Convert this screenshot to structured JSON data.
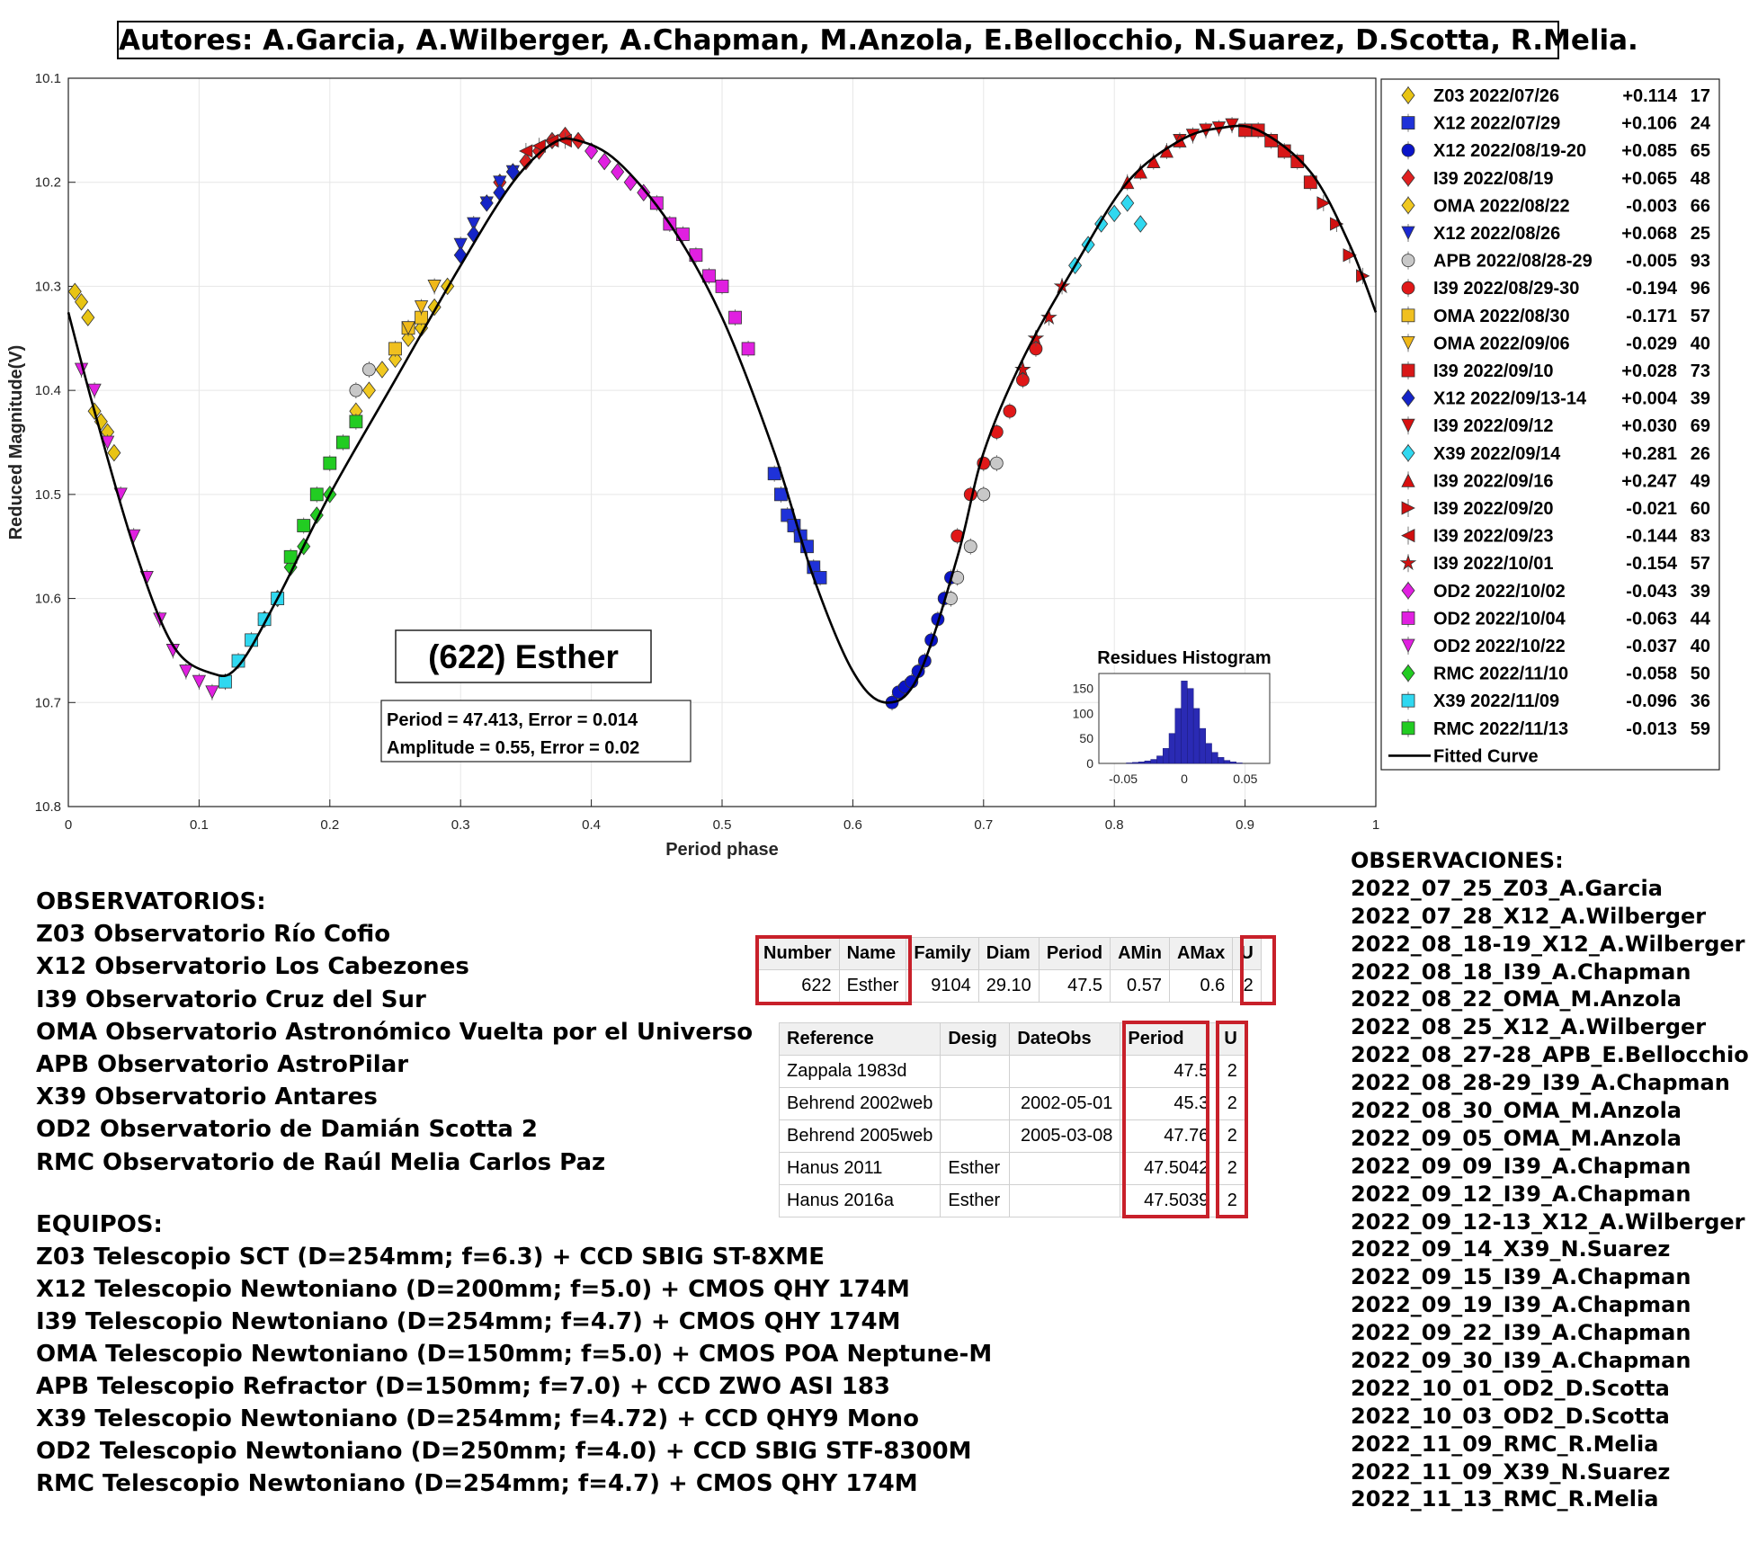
{
  "authors": "Autores: A.Garcia, A.Wilberger, A.Chapman, M.Anzola, E.Bellocchio, N.Suarez, D.Scotta, R.Melia.",
  "chart_data": {
    "type": "scatter",
    "title": "(622) Esther",
    "xlabel": "Period phase",
    "ylabel": "Reduced Magnitude(V)",
    "xlim": [
      0,
      1
    ],
    "ylim": [
      10.1,
      10.8
    ],
    "y_reversed": true,
    "x_ticks": [
      "0",
      "0.1",
      "0.2",
      "0.3",
      "0.4",
      "0.5",
      "0.6",
      "0.7",
      "0.8",
      "0.9",
      "1"
    ],
    "y_ticks": [
      "10.1",
      "10.2",
      "10.3",
      "10.4",
      "10.5",
      "10.6",
      "10.7",
      "10.8"
    ],
    "grid": true,
    "legend_position": "outside-right",
    "fit_info": {
      "line1": "Period =  47.413, Error = 0.014",
      "line2": "Amplitude = 0.55, Error = 0.02"
    },
    "fitted_curve": {
      "name": "Fitted Curve",
      "points": [
        [
          0,
          10.325
        ],
        [
          0.02,
          10.42
        ],
        [
          0.05,
          10.55
        ],
        [
          0.08,
          10.645
        ],
        [
          0.11,
          10.672
        ],
        [
          0.13,
          10.665
        ],
        [
          0.16,
          10.6
        ],
        [
          0.2,
          10.5
        ],
        [
          0.25,
          10.39
        ],
        [
          0.3,
          10.28
        ],
        [
          0.34,
          10.2
        ],
        [
          0.37,
          10.163
        ],
        [
          0.39,
          10.16
        ],
        [
          0.42,
          10.18
        ],
        [
          0.46,
          10.24
        ],
        [
          0.5,
          10.33
        ],
        [
          0.54,
          10.46
        ],
        [
          0.57,
          10.58
        ],
        [
          0.6,
          10.67
        ],
        [
          0.625,
          10.7
        ],
        [
          0.65,
          10.675
        ],
        [
          0.68,
          10.56
        ],
        [
          0.7,
          10.46
        ],
        [
          0.73,
          10.37
        ],
        [
          0.77,
          10.28
        ],
        [
          0.81,
          10.2
        ],
        [
          0.85,
          10.16
        ],
        [
          0.88,
          10.148
        ],
        [
          0.91,
          10.15
        ],
        [
          0.95,
          10.19
        ],
        [
          0.98,
          10.26
        ],
        [
          1.0,
          10.325
        ]
      ]
    },
    "series": [
      {
        "name": "Z03 2022/07/26",
        "offset": "+0.114",
        "n": "17",
        "color": "#e8c414",
        "marker": "diamond",
        "points": [
          [
            0.005,
            10.305
          ],
          [
            0.01,
            10.315
          ],
          [
            0.015,
            10.33
          ],
          [
            0.02,
            10.42
          ],
          [
            0.025,
            10.43
          ],
          [
            0.03,
            10.44
          ],
          [
            0.035,
            10.46
          ],
          [
            0.27,
            10.34
          ],
          [
            0.29,
            10.3
          ],
          [
            0.28,
            10.32
          ]
        ]
      },
      {
        "name": "X12 2022/07/29",
        "offset": "+0.106",
        "n": "24",
        "color": "#1f32d8",
        "marker": "square",
        "points": [
          [
            0.54,
            10.48
          ],
          [
            0.545,
            10.5
          ],
          [
            0.55,
            10.52
          ],
          [
            0.555,
            10.53
          ],
          [
            0.56,
            10.54
          ],
          [
            0.565,
            10.55
          ],
          [
            0.57,
            10.57
          ],
          [
            0.575,
            10.58
          ]
        ]
      },
      {
        "name": "X12 2022/08/19-20",
        "offset": "+0.085",
        "n": "65",
        "color": "#0a14c8",
        "marker": "circle",
        "points": [
          [
            0.63,
            10.7
          ],
          [
            0.635,
            10.69
          ],
          [
            0.64,
            10.685
          ],
          [
            0.645,
            10.68
          ],
          [
            0.65,
            10.67
          ],
          [
            0.655,
            10.66
          ],
          [
            0.66,
            10.64
          ],
          [
            0.665,
            10.62
          ],
          [
            0.67,
            10.6
          ],
          [
            0.675,
            10.58
          ]
        ]
      },
      {
        "name": "I39 2022/08/19",
        "offset": "+0.065",
        "n": "48",
        "color": "#e02020",
        "marker": "diamond",
        "points": [
          [
            0.34,
            10.19
          ],
          [
            0.35,
            10.18
          ],
          [
            0.36,
            10.17
          ],
          [
            0.37,
            10.16
          ],
          [
            0.38,
            10.155
          ],
          [
            0.39,
            10.16
          ],
          [
            0.33,
            10.2
          ]
        ]
      },
      {
        "name": "OMA 2022/08/22",
        "offset": "-0.003",
        "n": "66",
        "color": "#f0c820",
        "marker": "diamond",
        "points": [
          [
            0.22,
            10.42
          ],
          [
            0.23,
            10.4
          ],
          [
            0.24,
            10.38
          ],
          [
            0.25,
            10.37
          ],
          [
            0.26,
            10.35
          ]
        ]
      },
      {
        "name": "X12 2022/08/26",
        "offset": "+0.068",
        "n": "25",
        "color": "#1a28d0",
        "marker": "triangle-down",
        "points": [
          [
            0.3,
            10.26
          ],
          [
            0.31,
            10.24
          ],
          [
            0.32,
            10.22
          ],
          [
            0.33,
            10.2
          ],
          [
            0.34,
            10.19
          ]
        ]
      },
      {
        "name": "APB 2022/08/28-29",
        "offset": "-0.005",
        "n": "93",
        "color": "#c8c8c8",
        "marker": "circle",
        "points": [
          [
            0.22,
            10.4
          ],
          [
            0.23,
            10.38
          ],
          [
            0.68,
            10.58
          ],
          [
            0.69,
            10.55
          ],
          [
            0.7,
            10.5
          ],
          [
            0.71,
            10.47
          ],
          [
            0.675,
            10.6
          ]
        ]
      },
      {
        "name": "I39 2022/08/29-30",
        "offset": "-0.194",
        "n": "96",
        "color": "#e01818",
        "marker": "circle",
        "points": [
          [
            0.68,
            10.54
          ],
          [
            0.69,
            10.5
          ],
          [
            0.7,
            10.47
          ],
          [
            0.71,
            10.44
          ],
          [
            0.72,
            10.42
          ],
          [
            0.73,
            10.39
          ],
          [
            0.74,
            10.36
          ]
        ]
      },
      {
        "name": "OMA 2022/08/30",
        "offset": "-0.171",
        "n": "57",
        "color": "#f0c020",
        "marker": "square",
        "points": [
          [
            0.25,
            10.36
          ],
          [
            0.26,
            10.34
          ],
          [
            0.27,
            10.33
          ]
        ]
      },
      {
        "name": "OMA 2022/09/06",
        "offset": "-0.029",
        "n": "40",
        "color": "#f0b818",
        "marker": "triangle-down",
        "points": [
          [
            0.26,
            10.34
          ],
          [
            0.27,
            10.32
          ],
          [
            0.28,
            10.3
          ]
        ]
      },
      {
        "name": "I39 2022/09/10",
        "offset": "+0.028",
        "n": "73",
        "color": "#d81818",
        "marker": "square",
        "points": [
          [
            0.9,
            10.15
          ],
          [
            0.91,
            10.15
          ],
          [
            0.92,
            10.16
          ],
          [
            0.93,
            10.17
          ],
          [
            0.94,
            10.18
          ],
          [
            0.95,
            10.2
          ]
        ]
      },
      {
        "name": "X12 2022/09/13-14",
        "offset": "+0.004",
        "n": "39",
        "color": "#1424c8",
        "marker": "diamond",
        "points": [
          [
            0.3,
            10.27
          ],
          [
            0.31,
            10.25
          ],
          [
            0.32,
            10.22
          ],
          [
            0.33,
            10.21
          ],
          [
            0.34,
            10.19
          ]
        ]
      },
      {
        "name": "I39 2022/09/12",
        "offset": "+0.030",
        "n": "69",
        "color": "#d81010",
        "marker": "triangle-down",
        "points": [
          [
            0.85,
            10.16
          ],
          [
            0.86,
            10.155
          ],
          [
            0.87,
            10.15
          ],
          [
            0.88,
            10.148
          ],
          [
            0.89,
            10.145
          ]
        ]
      },
      {
        "name": "X39 2022/09/14",
        "offset": "+0.281",
        "n": "26",
        "color": "#30d8f0",
        "marker": "diamond",
        "points": [
          [
            0.77,
            10.28
          ],
          [
            0.78,
            10.26
          ],
          [
            0.79,
            10.24
          ],
          [
            0.8,
            10.23
          ],
          [
            0.81,
            10.22
          ],
          [
            0.82,
            10.24
          ]
        ]
      },
      {
        "name": "I39 2022/09/16",
        "offset": "+0.247",
        "n": "49",
        "color": "#d81010",
        "marker": "triangle-up",
        "points": [
          [
            0.81,
            10.2
          ],
          [
            0.82,
            10.19
          ],
          [
            0.83,
            10.18
          ],
          [
            0.84,
            10.17
          ],
          [
            0.85,
            10.16
          ]
        ]
      },
      {
        "name": "I39 2022/09/20",
        "offset": "-0.021",
        "n": "60",
        "color": "#d01010",
        "marker": "triangle-right",
        "points": [
          [
            0.96,
            10.22
          ],
          [
            0.97,
            10.24
          ],
          [
            0.98,
            10.27
          ],
          [
            0.99,
            10.29
          ]
        ]
      },
      {
        "name": "I39 2022/09/23",
        "offset": "-0.144",
        "n": "83",
        "color": "#d01010",
        "marker": "triangle-left",
        "points": [
          [
            0.35,
            10.17
          ],
          [
            0.36,
            10.165
          ],
          [
            0.37,
            10.16
          ],
          [
            0.38,
            10.16
          ]
        ]
      },
      {
        "name": "I39 2022/10/01",
        "offset": "-0.154",
        "n": "57",
        "color": "#d01010",
        "marker": "star",
        "points": [
          [
            0.73,
            10.38
          ],
          [
            0.74,
            10.35
          ],
          [
            0.75,
            10.33
          ],
          [
            0.76,
            10.3
          ]
        ]
      },
      {
        "name": "OD2 2022/10/02",
        "offset": "-0.043",
        "n": "39",
        "color": "#e020e0",
        "marker": "diamond",
        "points": [
          [
            0.4,
            10.17
          ],
          [
            0.41,
            10.18
          ],
          [
            0.42,
            10.19
          ],
          [
            0.43,
            10.2
          ],
          [
            0.44,
            10.21
          ]
        ]
      },
      {
        "name": "OD2 2022/10/04",
        "offset": "-0.063",
        "n": "44",
        "color": "#e020e0",
        "marker": "square",
        "points": [
          [
            0.45,
            10.22
          ],
          [
            0.46,
            10.24
          ],
          [
            0.47,
            10.25
          ],
          [
            0.48,
            10.27
          ],
          [
            0.49,
            10.29
          ],
          [
            0.5,
            10.3
          ],
          [
            0.51,
            10.33
          ],
          [
            0.52,
            10.36
          ]
        ]
      },
      {
        "name": "OD2 2022/10/22",
        "offset": "-0.037",
        "n": "40",
        "color": "#e020e0",
        "marker": "triangle-down",
        "points": [
          [
            0.01,
            10.38
          ],
          [
            0.02,
            10.4
          ],
          [
            0.03,
            10.45
          ],
          [
            0.04,
            10.5
          ],
          [
            0.05,
            10.54
          ],
          [
            0.06,
            10.58
          ],
          [
            0.07,
            10.62
          ],
          [
            0.08,
            10.65
          ],
          [
            0.09,
            10.67
          ],
          [
            0.1,
            10.68
          ],
          [
            0.11,
            10.69
          ],
          [
            0.12,
            10.68
          ]
        ]
      },
      {
        "name": "RMC 2022/11/10",
        "offset": "-0.058",
        "n": "50",
        "color": "#22cc22",
        "marker": "diamond",
        "points": [
          [
            0.15,
            10.62
          ],
          [
            0.16,
            10.6
          ],
          [
            0.17,
            10.57
          ],
          [
            0.18,
            10.55
          ],
          [
            0.19,
            10.52
          ],
          [
            0.2,
            10.5
          ]
        ]
      },
      {
        "name": "X39 2022/11/09",
        "offset": "-0.096",
        "n": "36",
        "color": "#30d8f0",
        "marker": "square",
        "points": [
          [
            0.12,
            10.68
          ],
          [
            0.13,
            10.66
          ],
          [
            0.14,
            10.64
          ],
          [
            0.15,
            10.62
          ],
          [
            0.16,
            10.6
          ]
        ]
      },
      {
        "name": "RMC 2022/11/13",
        "offset": "-0.013",
        "n": "59",
        "color": "#22cc22",
        "marker": "square",
        "points": [
          [
            0.17,
            10.56
          ],
          [
            0.18,
            10.53
          ],
          [
            0.19,
            10.5
          ],
          [
            0.2,
            10.47
          ],
          [
            0.21,
            10.45
          ],
          [
            0.22,
            10.43
          ]
        ]
      }
    ],
    "inset_histogram": {
      "title": "Residues Histogram",
      "x_ticks": [
        "-0.05",
        "0",
        "0.05"
      ],
      "y_ticks": [
        "0",
        "50",
        "100",
        "150"
      ],
      "ylim": [
        0,
        180
      ],
      "bin_centers": [
        -0.05,
        -0.045,
        -0.04,
        -0.035,
        -0.03,
        -0.025,
        -0.02,
        -0.015,
        -0.01,
        -0.005,
        0,
        0.005,
        0.01,
        0.015,
        0.02,
        0.025,
        0.03,
        0.035,
        0.04,
        0.045,
        0.05
      ],
      "counts": [
        0,
        1,
        2,
        3,
        5,
        8,
        15,
        30,
        60,
        110,
        165,
        150,
        110,
        70,
        40,
        22,
        12,
        6,
        3,
        1,
        0
      ],
      "bar_color": "#2a2ab4"
    }
  },
  "observatorios": {
    "title": "OBSERVATORIOS:",
    "items": [
      "Z03 Observatorio Río Cofio",
      "X12 Observatorio Los Cabezones",
      "I39 Observatorio Cruz del Sur",
      "OMA Observatorio Astronómico Vuelta por el Universo",
      "APB Observatorio AstroPilar",
      "X39 Observatorio Antares",
      "OD2 Observatorio de Damián Scotta 2",
      "RMC Observatorio de Raúl Melia Carlos Paz"
    ]
  },
  "equipos": {
    "title": "EQUIPOS:",
    "items": [
      "Z03 Telescopio SCT (D=254mm; f=6.3) + CCD SBIG ST-8XME",
      "X12 Telescopio Newtoniano (D=200mm; f=5.0) + CMOS QHY 174M",
      "I39 Telescopio Newtoniano (D=254mm; f=4.7) + CMOS QHY 174M",
      "OMA Telescopio Newtoniano (D=150mm; f=5.0) + CMOS POA Neptune-M",
      "APB Telescopio Refractor (D=150mm; f=7.0) + CCD ZWO ASI 183",
      "X39 Telescopio Newtoniano (D=254mm; f=4.72) + CCD QHY9 Mono",
      "OD2 Telescopio Newtoniano (D=250mm; f=4.0) + CCD SBIG STF-8300M",
      "RMC Telescopio Newtoniano (D=254mm; f=4.7) + CMOS QHY 174M"
    ]
  },
  "observaciones": {
    "title": "OBSERVACIONES:",
    "items": [
      "2022_07_25_Z03_A.Garcia",
      "2022_07_28_X12_A.Wilberger",
      "2022_08_18-19_X12_A.Wilberger",
      "2022_08_18_I39_A.Chapman",
      "2022_08_22_OMA_M.Anzola",
      "2022_08_25_X12_A.Wilberger",
      "2022_08_27-28_APB_E.Bellocchio",
      "2022_08_28-29_I39_A.Chapman",
      "2022_08_30_OMA_M.Anzola",
      "2022_09_05_OMA_M.Anzola",
      "2022_09_09_I39_A.Chapman",
      "2022_09_12_I39_A.Chapman",
      "2022_09_12-13_X12_A.Wilberger",
      "2022_09_14_X39_N.Suarez",
      "2022_09_15_I39_A.Chapman",
      "2022_09_19_I39_A.Chapman",
      "2022_09_22_I39_A.Chapman",
      "2022_09_30_I39_A.Chapman",
      "2022_10_01_OD2_D.Scotta",
      "2022_10_03_OD2_D.Scotta",
      "2022_11_09_RMC_R.Melia",
      "2022_11_09_X39_N.Suarez",
      "2022_11_13_RMC_R.Melia"
    ]
  },
  "lcdb_summary": {
    "headers": [
      "Number",
      "Name",
      "Family",
      "Diam",
      "Period",
      "AMin",
      "AMax",
      "U"
    ],
    "row": [
      "622",
      "Esther",
      "9104",
      "29.10",
      "47.5",
      "0.57",
      "0.6",
      "2"
    ]
  },
  "lcdb_refs": {
    "headers": [
      "Reference",
      "Desig",
      "DateObs",
      "Period",
      "U"
    ],
    "rows": [
      [
        "Zappala 1983d",
        "",
        "",
        "47.5",
        "2"
      ],
      [
        "Behrend 2002web",
        "",
        "2002-05-01",
        "45.3",
        "2"
      ],
      [
        "Behrend 2005web",
        "",
        "2005-03-08",
        "47.76",
        "2"
      ],
      [
        "Hanus 2011",
        "Esther",
        "",
        "47.5042",
        "2"
      ],
      [
        "Hanus 2016a",
        "Esther",
        "",
        "47.5039",
        "2"
      ]
    ]
  }
}
